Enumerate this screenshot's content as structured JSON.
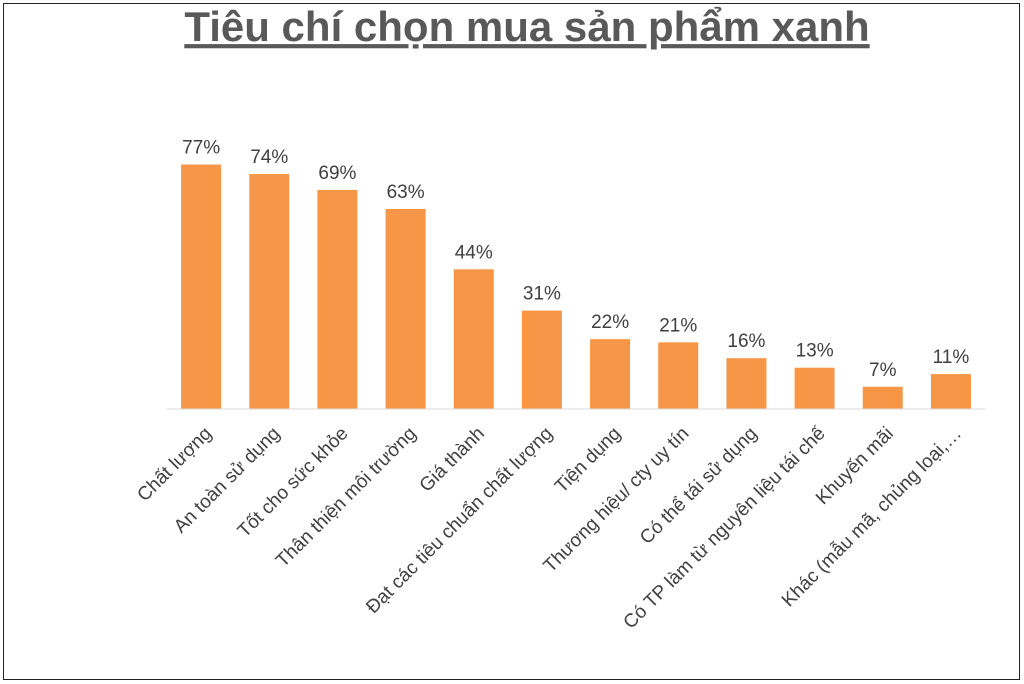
{
  "chart_data": {
    "type": "bar",
    "title": "Tiêu chí chọn mua sản phẩm xanh",
    "categories": [
      "Chất lượng",
      "An toàn sử dụng",
      "Tốt cho sức khỏe",
      "Thân thiện môi trường",
      "Giá thành",
      "Đạt các tiêu chuẩn chất lượng",
      "Tiện dụng",
      "Thương hiệu/ cty uy tín",
      "Có thể tái sử dụng",
      "Có TP làm từ nguyên liệu tái chế",
      "Khuyến mãi",
      "Khác (mẫu mã, chủng loại,…"
    ],
    "values": [
      77,
      74,
      69,
      63,
      44,
      31,
      22,
      21,
      16,
      13,
      7,
      11
    ],
    "value_labels": [
      "77%",
      "74%",
      "69%",
      "63%",
      "44%",
      "31%",
      "22%",
      "21%",
      "16%",
      "13%",
      "7%",
      "11%"
    ],
    "color": "#f79646",
    "ylim": [
      0,
      80
    ]
  }
}
